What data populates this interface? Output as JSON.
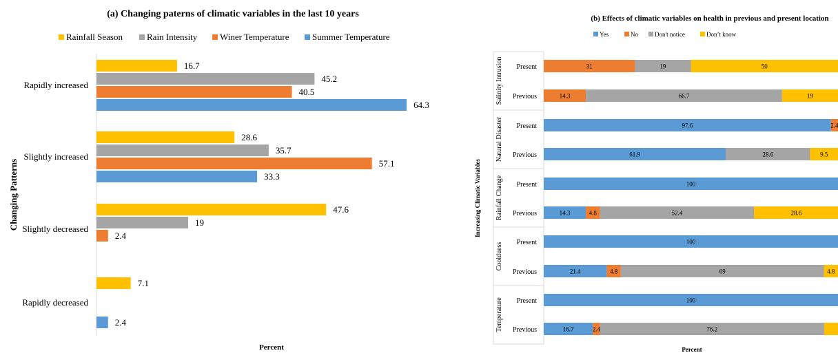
{
  "chart_data": [
    {
      "type": "bar",
      "orientation": "horizontal",
      "title": "(a) Changing paterns of climatic variables in the last 10 years",
      "xlabel": "Percent",
      "ylabel": "Changing Patterns",
      "categories": [
        "Rapidly increased",
        "Slightly increased",
        "Slightly decreased",
        "Rapidly decreased"
      ],
      "series": [
        {
          "name": "Rainfall Season",
          "color": "#FFC000",
          "values": [
            16.7,
            28.6,
            47.6,
            7.1
          ]
        },
        {
          "name": "Rain Intensity",
          "color": "#A5A5A5",
          "values": [
            45.2,
            35.7,
            19,
            null
          ]
        },
        {
          "name": "Winer Temperature",
          "color": "#ED7D31",
          "values": [
            40.5,
            57.1,
            2.4,
            null
          ]
        },
        {
          "name": "Summer Temperature",
          "color": "#5B9BD5",
          "values": [
            64.3,
            33.3,
            null,
            2.4
          ]
        }
      ],
      "xlim": [
        0,
        100
      ],
      "grid": false,
      "legend_position": "top"
    },
    {
      "type": "bar",
      "orientation": "horizontal",
      "stacked": true,
      "title": "(b) Effects of climatic variables on health in previous and present location",
      "xlabel": "Percent",
      "ylabel": "Increasing Climatic Variables",
      "groups": [
        "Salinity Intrusion",
        "Natural Disaster",
        "Rainfall Change",
        "Coolduess",
        "Temperature"
      ],
      "subcategories": [
        "Present",
        "Previous"
      ],
      "series": [
        {
          "name": "Yes",
          "color": "#5B9BD5",
          "values": [
            0,
            0,
            97.6,
            61.9,
            100,
            14.3,
            100,
            21.4,
            100,
            16.7
          ]
        },
        {
          "name": "No",
          "color": "#ED7D31",
          "values": [
            31,
            14.3,
            2.4,
            0,
            0,
            4.8,
            0,
            4.8,
            0,
            2.4
          ]
        },
        {
          "name": "Don't notice",
          "color": "#A5A5A5",
          "values": [
            19,
            66.7,
            0,
            28.6,
            0,
            52.4,
            0,
            69,
            0,
            76.2
          ]
        },
        {
          "name": "Don’t know",
          "color": "#FFC000",
          "values": [
            50,
            19,
            0,
            9.5,
            0,
            28.6,
            0,
            4.8,
            0,
            4.7
          ]
        }
      ],
      "data_labels": [
        [
          "",
          "31",
          "19",
          "50"
        ],
        [
          "",
          "14.3",
          "66.7",
          "19"
        ],
        [
          "97.6",
          "2.4",
          "",
          ""
        ],
        [
          "61.9",
          "",
          "28.6",
          "9.5"
        ],
        [
          "100",
          "",
          "",
          ""
        ],
        [
          "14.3",
          "4.8",
          "52.4",
          "28.6"
        ],
        [
          "100",
          "",
          "",
          ""
        ],
        [
          "21.4",
          "4.8",
          "69",
          "4.8"
        ],
        [
          "100",
          "",
          "",
          ""
        ],
        [
          "16.7",
          "2.4",
          "76.2",
          ""
        ]
      ],
      "xlim": [
        0,
        100
      ],
      "legend_position": "top"
    }
  ]
}
